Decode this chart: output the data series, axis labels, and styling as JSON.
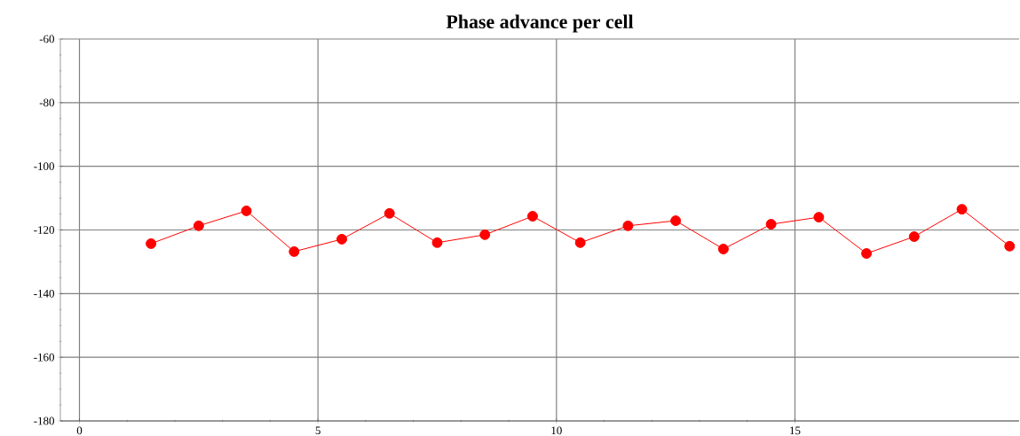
{
  "chart_data": {
    "type": "line",
    "title": "Phase advance per cell",
    "x": [
      1.5,
      2.5,
      3.5,
      4.5,
      5.5,
      6.5,
      7.5,
      8.5,
      9.5,
      10.5,
      11.5,
      12.5,
      13.5,
      14.5,
      15.5,
      16.5,
      17.5,
      18.5,
      19.5
    ],
    "series": [
      {
        "color": "#ff0000",
        "values": [
          -124.3,
          -118.7,
          -114,
          -126.8,
          -122.9,
          -114.8,
          -124,
          -121.5,
          -115.7,
          -124,
          -118.7,
          -117.1,
          -126,
          -118.2,
          -116,
          -127.4,
          -122.1,
          -113.5,
          -125.1
        ]
      }
    ],
    "xlim": [
      -0.4,
      19.7
    ],
    "ylim": [
      -180,
      -60
    ],
    "xticks": [
      0,
      5,
      10,
      15
    ],
    "yticks": [
      -180,
      -160,
      -140,
      -120,
      -100,
      -80,
      -60
    ],
    "grid": true,
    "marker": "circle",
    "line_style": "solid"
  }
}
